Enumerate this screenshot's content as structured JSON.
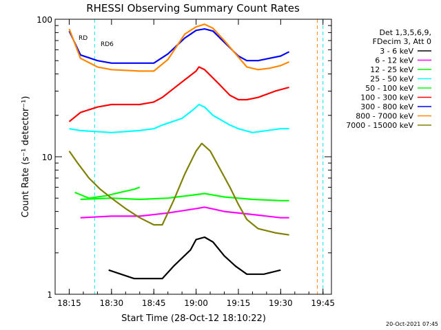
{
  "chart_data": {
    "type": "line",
    "title": "RHESSI Observing Summary Count Rates",
    "xlabel": "Start Time (28-Oct-12 18:10:22)",
    "ylabel": "Count Rate (s⁻¹ detector⁻¹)",
    "y_scale": "log",
    "ylim": [
      1,
      100
    ],
    "xlim": [
      "18:10",
      "19:48"
    ],
    "x_ticks": [
      "18:15",
      "18:30",
      "18:45",
      "19:00",
      "19:15",
      "19:30",
      "19:45"
    ],
    "y_ticks": [
      "1",
      "10",
      "100"
    ],
    "legend_placement": "right",
    "legend_header": [
      "Det 1,3,5,6,9,",
      "FDecim 3, Att 0"
    ],
    "timestamp": "20-Oct-2021 07:45",
    "markers": [
      {
        "label": "RD",
        "color": "#00aa00"
      },
      {
        "label": "RD6",
        "color": "#00aa00"
      }
    ],
    "vertical_lines": [
      {
        "time": "18:24",
        "style": "dashed",
        "color": "#00e5ee"
      },
      {
        "time": "19:43",
        "style": "dashed",
        "color": "#ff8800"
      },
      {
        "time": "19:45",
        "style": "dashed",
        "color": "#00e5ee"
      }
    ],
    "series": [
      {
        "name": "3 - 6 keV",
        "color": "#000000",
        "points": [
          [
            "18:29",
            1.5
          ],
          [
            "18:38",
            1.3
          ],
          [
            "18:48",
            1.3
          ],
          [
            "18:52",
            1.6
          ],
          [
            "18:58",
            2.1
          ],
          [
            "19:00",
            2.5
          ],
          [
            "19:03",
            2.6
          ],
          [
            "19:06",
            2.4
          ],
          [
            "19:10",
            1.9
          ],
          [
            "19:14",
            1.6
          ],
          [
            "19:18",
            1.4
          ],
          [
            "19:24",
            1.4
          ],
          [
            "19:30",
            1.5
          ]
        ]
      },
      {
        "name": "6 - 12 keV",
        "color": "#ff00ff",
        "points": [
          [
            "18:19",
            3.6
          ],
          [
            "18:30",
            3.7
          ],
          [
            "18:40",
            3.7
          ],
          [
            "18:50",
            3.9
          ],
          [
            "19:00",
            4.2
          ],
          [
            "19:03",
            4.3
          ],
          [
            "19:10",
            4.0
          ],
          [
            "19:20",
            3.8
          ],
          [
            "19:30",
            3.6
          ],
          [
            "19:33",
            3.6
          ]
        ]
      },
      {
        "name": "12 - 25 keV",
        "color": "#00ff00",
        "points": [
          [
            "18:19",
            4.9
          ],
          [
            "18:30",
            5.0
          ],
          [
            "18:40",
            4.9
          ],
          [
            "18:50",
            5.0
          ],
          [
            "19:00",
            5.3
          ],
          [
            "19:03",
            5.4
          ],
          [
            "19:10",
            5.1
          ],
          [
            "19:20",
            4.9
          ],
          [
            "19:30",
            4.8
          ],
          [
            "19:33",
            4.8
          ]
        ]
      },
      {
        "name": "25 - 50 keV",
        "color": "#00ffff",
        "points": [
          [
            "18:15",
            16
          ],
          [
            "18:19",
            15.5
          ],
          [
            "18:30",
            15
          ],
          [
            "18:40",
            15.5
          ],
          [
            "18:45",
            16
          ],
          [
            "18:48",
            17
          ],
          [
            "18:55",
            19
          ],
          [
            "18:59",
            22
          ],
          [
            "19:01",
            24
          ],
          [
            "19:03",
            23
          ],
          [
            "19:06",
            20
          ],
          [
            "19:12",
            17
          ],
          [
            "19:15",
            16
          ],
          [
            "19:20",
            15
          ],
          [
            "19:30",
            16
          ],
          [
            "19:33",
            16
          ]
        ]
      },
      {
        "name": "50 - 100 keV",
        "color": "#00ff00",
        "points": [
          [
            "18:17",
            5.5
          ],
          [
            "18:22",
            5.0
          ],
          [
            "18:28",
            5.2
          ],
          [
            "18:33",
            5.5
          ],
          [
            "18:38",
            5.8
          ],
          [
            "18:40",
            6.0
          ]
        ]
      },
      {
        "name": "100 - 300 keV",
        "color": "#ff0000",
        "points": [
          [
            "18:15",
            18
          ],
          [
            "18:19",
            21
          ],
          [
            "18:25",
            23
          ],
          [
            "18:30",
            24
          ],
          [
            "18:35",
            24
          ],
          [
            "18:40",
            24
          ],
          [
            "18:45",
            25
          ],
          [
            "18:48",
            27
          ],
          [
            "18:55",
            35
          ],
          [
            "19:00",
            42
          ],
          [
            "19:01",
            45
          ],
          [
            "19:03",
            43
          ],
          [
            "19:08",
            34
          ],
          [
            "19:12",
            28
          ],
          [
            "19:15",
            26
          ],
          [
            "19:18",
            26
          ],
          [
            "19:22",
            27
          ],
          [
            "19:28",
            30
          ],
          [
            "19:33",
            32
          ]
        ]
      },
      {
        "name": "300 - 800 keV",
        "color": "#0000ff",
        "points": [
          [
            "18:15",
            82
          ],
          [
            "18:19",
            55
          ],
          [
            "18:25",
            50
          ],
          [
            "18:30",
            48
          ],
          [
            "18:40",
            48
          ],
          [
            "18:45",
            48
          ],
          [
            "18:50",
            56
          ],
          [
            "18:56",
            73
          ],
          [
            "19:00",
            83
          ],
          [
            "19:03",
            85
          ],
          [
            "19:06",
            82
          ],
          [
            "19:10",
            68
          ],
          [
            "19:15",
            54
          ],
          [
            "19:18",
            50
          ],
          [
            "19:22",
            50
          ],
          [
            "19:26",
            52
          ],
          [
            "19:30",
            54
          ],
          [
            "19:33",
            58
          ]
        ]
      },
      {
        "name": "800 - 7000 keV",
        "color": "#ff8800",
        "points": [
          [
            "18:15",
            85
          ],
          [
            "18:19",
            52
          ],
          [
            "18:25",
            45
          ],
          [
            "18:30",
            43
          ],
          [
            "18:40",
            42
          ],
          [
            "18:45",
            42
          ],
          [
            "18:50",
            51
          ],
          [
            "18:56",
            78
          ],
          [
            "19:00",
            88
          ],
          [
            "19:03",
            92
          ],
          [
            "19:06",
            86
          ],
          [
            "19:10",
            70
          ],
          [
            "19:15",
            53
          ],
          [
            "19:18",
            45
          ],
          [
            "19:22",
            43
          ],
          [
            "19:26",
            44
          ],
          [
            "19:30",
            46
          ],
          [
            "19:33",
            49
          ]
        ]
      },
      {
        "name": "7000 - 15000 keV",
        "color": "#808000",
        "points": [
          [
            "18:15",
            11
          ],
          [
            "18:18",
            9
          ],
          [
            "18:22",
            7
          ],
          [
            "18:26",
            5.8
          ],
          [
            "18:30",
            5
          ],
          [
            "18:35",
            4.2
          ],
          [
            "18:40",
            3.6
          ],
          [
            "18:45",
            3.2
          ],
          [
            "18:48",
            3.2
          ],
          [
            "18:52",
            4.8
          ],
          [
            "18:56",
            7.5
          ],
          [
            "19:00",
            11
          ],
          [
            "19:02",
            12.5
          ],
          [
            "19:05",
            11
          ],
          [
            "19:08",
            8.5
          ],
          [
            "19:12",
            6
          ],
          [
            "19:15",
            4.5
          ],
          [
            "19:18",
            3.5
          ],
          [
            "19:22",
            3
          ],
          [
            "19:28",
            2.8
          ],
          [
            "19:33",
            2.7
          ]
        ]
      }
    ]
  }
}
